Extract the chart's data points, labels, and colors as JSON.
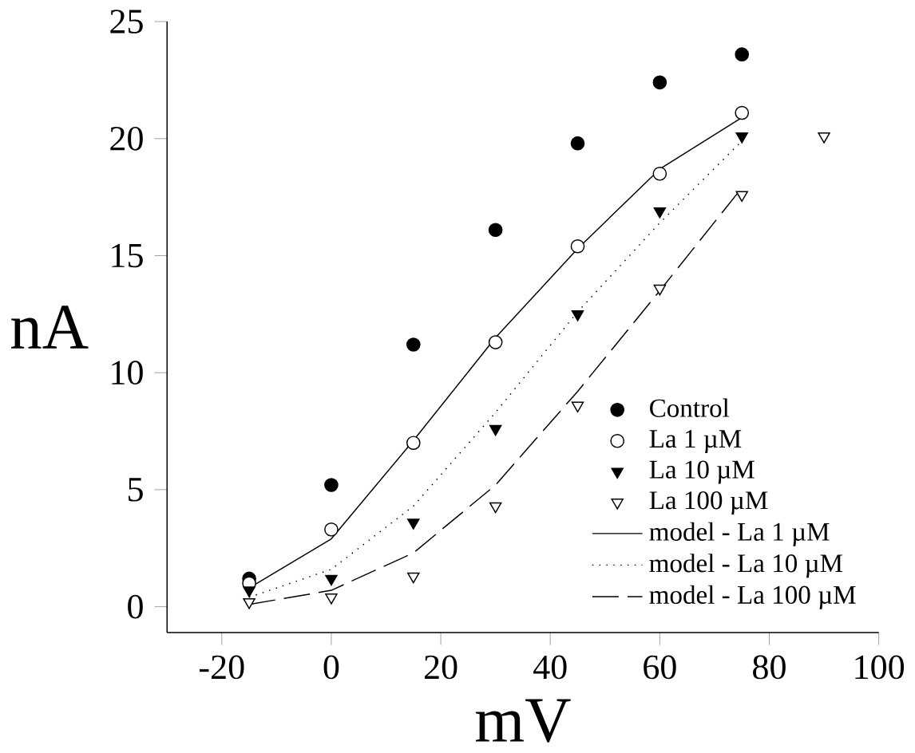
{
  "chart_data": {
    "type": "line",
    "xlabel": "mV",
    "ylabel": "nA",
    "xlim": [
      -30,
      100
    ],
    "ylim": [
      -1.1,
      25
    ],
    "xticks": [
      -20,
      0,
      20,
      40,
      60,
      80,
      100
    ],
    "yticks": [
      0,
      5,
      10,
      15,
      20,
      25
    ],
    "grid": false,
    "legend": "bottom right",
    "series": [
      {
        "name": "Control",
        "type": "scatter",
        "marker": "circle",
        "color": "#000000",
        "x": [
          -15,
          0,
          15,
          30,
          45,
          60,
          75
        ],
        "values": [
          1.2,
          5.2,
          11.2,
          16.1,
          19.8,
          22.4,
          23.6
        ]
      },
      {
        "name": "La 1 µM",
        "type": "scatter",
        "marker": "circle",
        "color": "#000000",
        "x": [
          -15,
          0,
          15,
          30,
          45,
          60,
          75
        ],
        "values": [
          1.0,
          3.3,
          7.0,
          11.3,
          15.4,
          18.5,
          21.1
        ]
      },
      {
        "name": "La 10 µM",
        "type": "scatter",
        "marker": "triangle",
        "color": "#000000",
        "x": [
          -15,
          0,
          15,
          30,
          45,
          60,
          75
        ],
        "values": [
          0.7,
          1.2,
          3.6,
          7.6,
          12.5,
          16.9,
          20.1
        ]
      },
      {
        "name": "La 100 µM",
        "type": "scatter",
        "marker": "triangle",
        "color": "#000000",
        "x": [
          -15,
          0,
          15,
          30,
          45,
          60,
          75,
          90
        ],
        "values": [
          0.2,
          0.4,
          1.3,
          4.3,
          8.6,
          13.6,
          17.6,
          20.1
        ]
      },
      {
        "name": "model - La 1 µM",
        "line_style": "solid",
        "color": "#000000",
        "x": [
          -15,
          0,
          15,
          30,
          45,
          60,
          75
        ],
        "values": [
          0.8,
          2.9,
          7.1,
          11.5,
          15.3,
          18.7,
          20.9
        ]
      },
      {
        "name": "model - La 10 µM",
        "line_style": "dotted",
        "color": "#000000",
        "x": [
          -15,
          0,
          15,
          30,
          45,
          60,
          75
        ],
        "values": [
          0.4,
          1.6,
          4.3,
          8.3,
          12.6,
          16.4,
          19.9
        ]
      },
      {
        "name": "model - La 100 µM",
        "line_style": "dashed",
        "color": "#000000",
        "x": [
          -15,
          0,
          15,
          30,
          45,
          60,
          75
        ],
        "values": [
          0.1,
          0.7,
          2.3,
          5.2,
          9.2,
          13.5,
          17.9
        ]
      }
    ]
  }
}
